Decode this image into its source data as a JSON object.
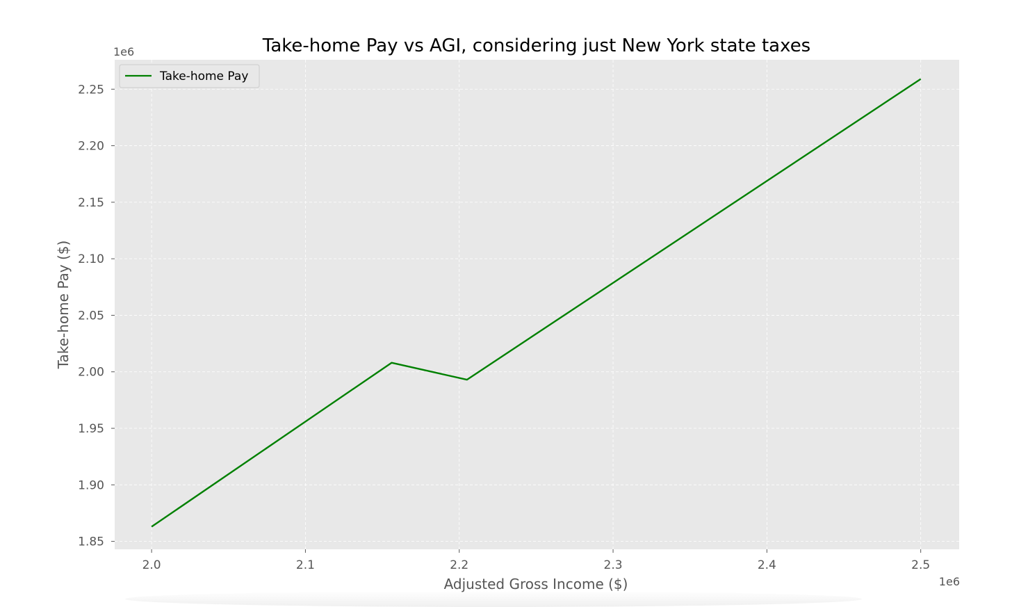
{
  "chart_data": {
    "type": "line",
    "title": "Take-home Pay vs AGI, considering just New York state taxes",
    "xlabel": "Adjusted Gross Income ($)",
    "ylabel": "Take-home Pay ($)",
    "x_offset_label": "1e6",
    "y_offset_label": "1e6",
    "xlim": [
      1.976,
      2.525
    ],
    "ylim": [
      1.843,
      2.276
    ],
    "x_ticks": [
      2.0,
      2.1,
      2.2,
      2.3,
      2.4,
      2.5
    ],
    "x_tick_labels": [
      "2.0",
      "2.1",
      "2.2",
      "2.3",
      "2.4",
      "2.5"
    ],
    "y_ticks": [
      1.85,
      1.9,
      1.95,
      2.0,
      2.05,
      2.1,
      2.15,
      2.2,
      2.25
    ],
    "y_tick_labels": [
      "1.85",
      "1.90",
      "1.95",
      "2.00",
      "2.05",
      "2.10",
      "2.15",
      "2.20",
      "2.25"
    ],
    "grid": true,
    "legend_position": "top-left",
    "series": [
      {
        "name": "Take-home Pay",
        "color": "#008000",
        "x": [
          2.0,
          2.156,
          2.205,
          2.5
        ],
        "y": [
          1.863,
          2.008,
          1.993,
          2.259
        ]
      }
    ],
    "colors": {
      "plot_bg": "#e8e8e8",
      "grid": "#ffffff",
      "text": "#555555",
      "title": "#000000"
    }
  }
}
